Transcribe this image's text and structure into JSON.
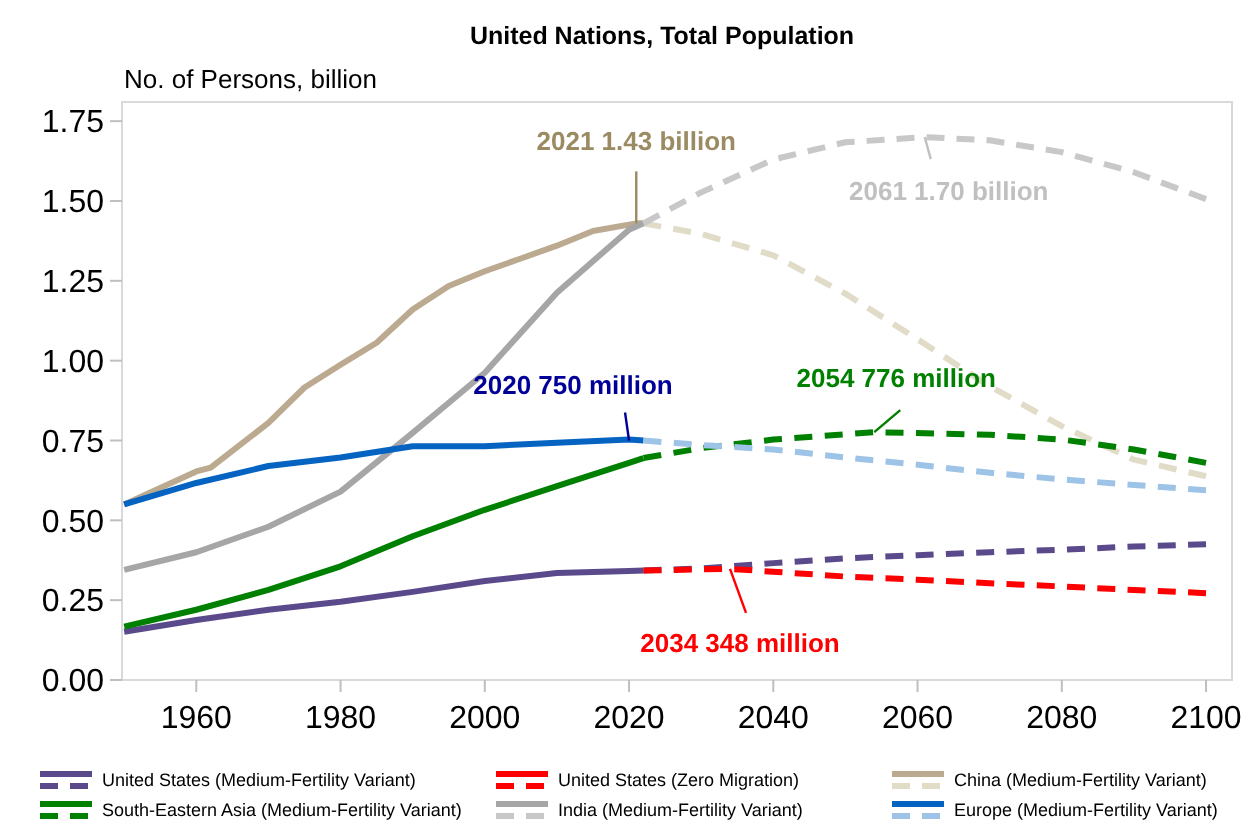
{
  "chart_data": {
    "type": "line",
    "title": "United Nations, Total Population",
    "ylabel": "No. of Persons, billion",
    "xlim": [
      1949.7,
      2103.6
    ],
    "ylim": [
      0,
      1.81
    ],
    "xticks": [
      1960,
      1980,
      2000,
      2020,
      2040,
      2060,
      2080,
      2100
    ],
    "yticks": [
      {
        "value": 0,
        "label": "0.00"
      },
      {
        "value": 0.25,
        "label": "0.25"
      },
      {
        "value": 0.5,
        "label": "0.50"
      },
      {
        "value": 0.75,
        "label": "0.75"
      },
      {
        "value": 1,
        "label": "1.00"
      },
      {
        "value": 1.25,
        "label": "1.25"
      },
      {
        "value": 1.5,
        "label": "1.50"
      },
      {
        "value": 1.75,
        "label": "1.75"
      }
    ],
    "grid": false,
    "legend": "bottom",
    "marker": "none",
    "series": [
      {
        "name": "United States (Medium-Fertility Variant)",
        "color": "#5b4a8b",
        "line_style": "solid",
        "x": [
          1950,
          1960,
          1970,
          1980,
          1990,
          2000,
          2010,
          2020,
          2022
        ],
        "values": [
          0.151,
          0.188,
          0.22,
          0.245,
          0.276,
          0.31,
          0.335,
          0.341,
          0.343
        ]
      },
      {
        "color": "#5b4a8b",
        "line_style": "dashed",
        "x": [
          2022,
          2030,
          2040,
          2050,
          2060,
          2070,
          2080,
          2090,
          2100
        ],
        "values": [
          0.343,
          0.349,
          0.366,
          0.381,
          0.391,
          0.4,
          0.408,
          0.418,
          0.425
        ]
      },
      {
        "name": "United States (Zero Migration)",
        "color": "#ff0000",
        "line_style": "dashed",
        "x": [
          2022,
          2034,
          2040,
          2050,
          2060,
          2070,
          2080,
          2090,
          2100
        ],
        "values": [
          0.343,
          0.348,
          0.339,
          0.324,
          0.314,
          0.303,
          0.293,
          0.282,
          0.272
        ]
      },
      {
        "name": "China (Medium-Fertility Variant)",
        "color": "#bba990",
        "line_style": "solid",
        "x": [
          1950,
          1960,
          1962,
          1970,
          1975,
          1980,
          1985,
          1990,
          1995,
          2000,
          2005,
          2010,
          2015,
          2021,
          2022
        ],
        "values": [
          0.55,
          0.653,
          0.665,
          0.805,
          0.916,
          0.987,
          1.056,
          1.16,
          1.234,
          1.28,
          1.32,
          1.36,
          1.406,
          1.43,
          1.43
        ]
      },
      {
        "color": "#e0dcc8",
        "line_style": "dashed",
        "x": [
          2022,
          2030,
          2040,
          2050,
          2060,
          2070,
          2080,
          2090,
          2100
        ],
        "values": [
          1.43,
          1.397,
          1.33,
          1.21,
          1.067,
          0.92,
          0.795,
          0.69,
          0.638
        ]
      },
      {
        "name": "South-Eastern Asia (Medium-Fertility Variant)",
        "color": "#008000",
        "line_style": "solid",
        "x": [
          1950,
          1960,
          1970,
          1980,
          1990,
          2000,
          2010,
          2020,
          2022
        ],
        "values": [
          0.167,
          0.22,
          0.282,
          0.356,
          0.45,
          0.533,
          0.607,
          0.68,
          0.695
        ]
      },
      {
        "color": "#008000",
        "line_style": "dashed",
        "x": [
          2022,
          2030,
          2040,
          2054,
          2070,
          2080,
          2090,
          2100
        ],
        "values": [
          0.695,
          0.726,
          0.753,
          0.776,
          0.768,
          0.753,
          0.722,
          0.68
        ]
      },
      {
        "name": "India (Medium-Fertility Variant)",
        "color": "#a6a6a6",
        "line_style": "solid",
        "x": [
          1950,
          1960,
          1970,
          1980,
          1990,
          2000,
          2010,
          2020,
          2022
        ],
        "values": [
          0.345,
          0.4,
          0.48,
          0.59,
          0.774,
          0.962,
          1.213,
          1.41,
          1.43
        ]
      },
      {
        "color": "#c8c8c8",
        "line_style": "dashed",
        "x": [
          2022,
          2030,
          2040,
          2050,
          2061,
          2070,
          2080,
          2090,
          2100
        ],
        "values": [
          1.43,
          1.527,
          1.63,
          1.684,
          1.7,
          1.69,
          1.653,
          1.59,
          1.506
        ]
      },
      {
        "name": "Europe (Medium-Fertility Variant)",
        "color": "#0563c1",
        "line_style": "solid",
        "x": [
          1950,
          1960,
          1970,
          1980,
          1990,
          2000,
          2010,
          2020,
          2022
        ],
        "values": [
          0.55,
          0.617,
          0.67,
          0.697,
          0.732,
          0.732,
          0.743,
          0.753,
          0.75
        ]
      },
      {
        "color": "#9dc3e6",
        "line_style": "dashed",
        "x": [
          2022,
          2030,
          2040,
          2050,
          2060,
          2070,
          2080,
          2090,
          2100
        ],
        "values": [
          0.75,
          0.736,
          0.722,
          0.697,
          0.674,
          0.649,
          0.628,
          0.611,
          0.594
        ]
      }
    ],
    "annotations": [
      {
        "text": "2021 1.43 billion",
        "x": 2021,
        "y": 1.43
      },
      {
        "text": "2061 1.70 billion",
        "x": 2061,
        "y": 1.7
      },
      {
        "text": "2020 750 million",
        "x": 2020,
        "y": 0.75
      },
      {
        "text": "2054 776 million",
        "x": 2054,
        "y": 0.776
      },
      {
        "text": "2034 348 million",
        "x": 2034,
        "y": 0.348
      }
    ]
  }
}
